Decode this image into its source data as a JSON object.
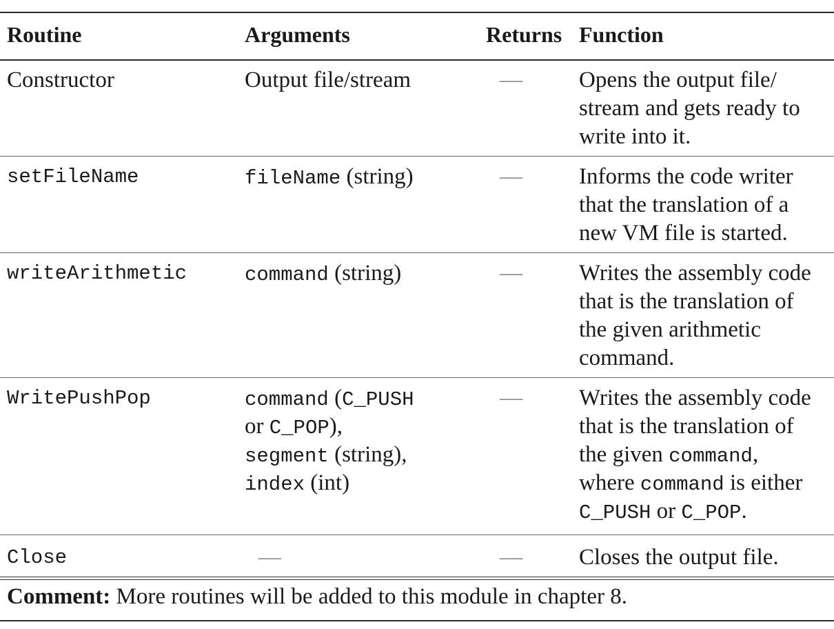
{
  "table": {
    "headers": [
      "Routine",
      "Arguments",
      "Returns",
      "Function"
    ],
    "rows": [
      {
        "routine": "Constructor",
        "arguments": [
          "Output file/stream"
        ],
        "returns": "—",
        "function": [
          "Opens the output file/",
          "stream and gets ready to",
          "write into it."
        ]
      },
      {
        "routine": "setFileName",
        "arguments_code": "fileName",
        "arguments_rest": " (string)",
        "returns": "—",
        "function": [
          "Informs the code writer",
          "that the translation of a",
          "new VM file is started."
        ]
      },
      {
        "routine": "writeArithmetic",
        "arguments_code": "command",
        "arguments_rest": " (string)",
        "returns": "—",
        "function": [
          "Writes the assembly code",
          "that is the translation of",
          "the given arithmetic",
          "command."
        ]
      },
      {
        "routine": "WritePushPop",
        "args": {
          "l1_code1": "command",
          "l1_text1": " (",
          "l1_code2": "C_PUSH",
          "l2_text1": "or ",
          "l2_code1": "C_POP",
          "l2_text2": "),",
          "l3_code1": "segment",
          "l3_text1": " (string),",
          "l4_code1": "index",
          "l4_text1": " (int)"
        },
        "returns": "—",
        "func": {
          "l1": "Writes the assembly code",
          "l2": "that is the translation of",
          "l3_text": "the given ",
          "l3_code": "command",
          "l3_end": ",",
          "l4_text": "where ",
          "l4_code": "command",
          "l4_end": " is either",
          "l5_code1": "C_PUSH",
          "l5_text": " or ",
          "l5_code2": "C_POP",
          "l5_end": "."
        }
      },
      {
        "routine": "Close",
        "arguments_dash": "—",
        "returns": "—",
        "function": [
          "Closes the output file."
        ]
      }
    ]
  },
  "comment": {
    "label": "Comment:",
    "text": " More routines will be added to this module in chapter 8."
  }
}
